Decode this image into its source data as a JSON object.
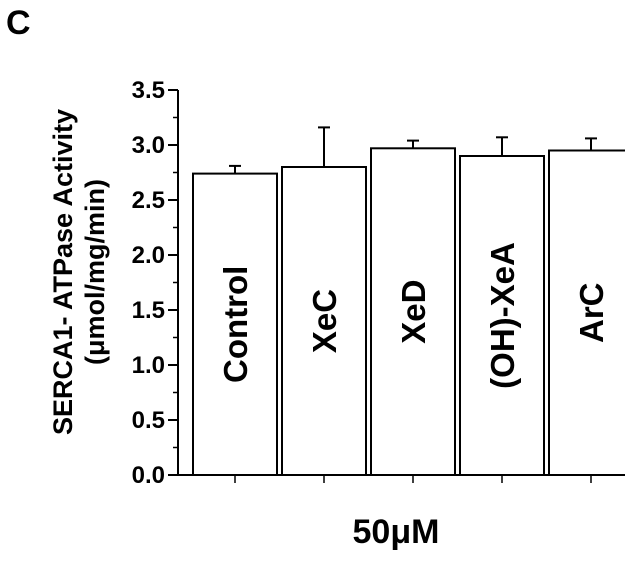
{
  "panel_label": "C",
  "chart_data": {
    "type": "bar",
    "categories": [
      "Control",
      "XeC",
      "XeD",
      "(OH)-XeA",
      "ArC"
    ],
    "values": [
      2.74,
      2.8,
      2.97,
      2.9,
      2.95
    ],
    "errors": [
      0.07,
      0.36,
      0.07,
      0.17,
      0.11
    ],
    "xlabel": "50μM",
    "ylabel": [
      "SERCA1- ATPase Activity",
      "(μmol/mg/min)"
    ],
    "ylim": [
      0.0,
      3.5
    ],
    "yticks": [
      "0.0",
      "0.5",
      "1.0",
      "1.5",
      "2.0",
      "2.5",
      "3.0",
      "3.5"
    ],
    "grid": false,
    "bar_fill": "#ffffff",
    "bar_stroke": "#000000"
  }
}
